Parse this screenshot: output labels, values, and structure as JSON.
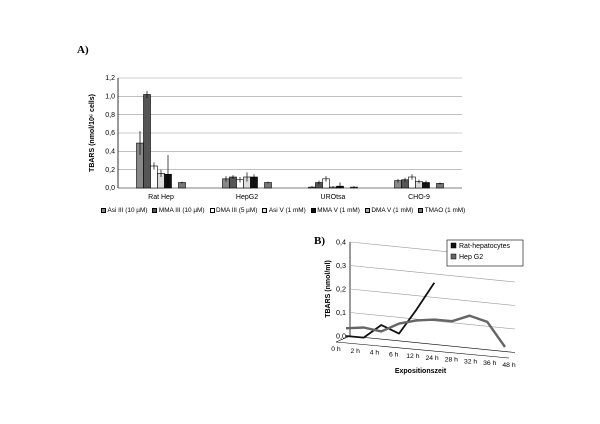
{
  "panel_a_label": "A)",
  "panel_b_label": "B)",
  "chart_data": [
    {
      "type": "bar",
      "ylabel": "TBARS (nmol/10⁶ cells)",
      "ylim": [
        0,
        1.2
      ],
      "yticks": [
        "0,0",
        "0,2",
        "0,4",
        "0,6",
        "0,8",
        "1,0",
        "1,2"
      ],
      "grid": true,
      "legend": "bottom",
      "categories": [
        "Rat Hep",
        "HepG2",
        "UROtsa",
        "CHO-9"
      ],
      "series": [
        {
          "name": "Asi III (10 µM)",
          "color": "#888888",
          "values": [
            0.49,
            0.1,
            0.01,
            0.08
          ],
          "errors": [
            0.13,
            0.03,
            0.01,
            0.02
          ]
        },
        {
          "name": "MMA III (10 µM)",
          "color": "#555555",
          "values": [
            1.02,
            0.12,
            0.06,
            0.09
          ],
          "errors": [
            0.04,
            0.02,
            0.02,
            0.02
          ]
        },
        {
          "name": "DMA III (5 µM)",
          "color": "#ffffff",
          "values": [
            0.24,
            0.09,
            0.1,
            0.12
          ],
          "errors": [
            0.04,
            0.03,
            0.03,
            0.03
          ]
        },
        {
          "name": "Asi V (1 mM)",
          "color": "#dddddd",
          "values": [
            0.16,
            0.12,
            0.01,
            0.07
          ],
          "errors": [
            0.04,
            0.05,
            0.01,
            0.02
          ]
        },
        {
          "name": "MMA V (1 mM)",
          "color": "#111111",
          "values": [
            0.15,
            0.12,
            0.02,
            0.06
          ],
          "errors": [
            0.21,
            0.03,
            0.04,
            0.02
          ]
        },
        {
          "name": "DMA V (1 mM)",
          "color": "#aaaaaa",
          "values": [
            0.0,
            0.0,
            0.0,
            0.0
          ],
          "errors": [
            0,
            0,
            0,
            0
          ]
        },
        {
          "name": "TMAO (1 mM)",
          "color": "#777777",
          "values": [
            0.06,
            0.06,
            0.01,
            0.05
          ],
          "errors": [
            0.01,
            0.01,
            0.01,
            0.01
          ]
        }
      ]
    },
    {
      "type": "line",
      "xlabel": "Expositionszeit",
      "ylabel": "TBARS (nmol/ml)",
      "ylim": [
        0,
        0.4
      ],
      "yticks": [
        "0,0",
        "0,1",
        "0,2",
        "0,3",
        "0,4"
      ],
      "grid": true,
      "legend": "top-right",
      "categories": [
        "0 h",
        "2 h",
        "4 h",
        "6 h",
        "12 h",
        "24 h",
        "28 h",
        "32 h",
        "36 h",
        "48 h"
      ],
      "series": [
        {
          "name": "Rat-hepatocytes",
          "color": "#111111",
          "values": [
            0.0,
            0.0,
            0.06,
            0.03,
            0.14,
            0.26,
            null,
            null,
            null,
            null
          ]
        },
        {
          "name": "Hep G2",
          "color": "#666666",
          "values": [
            0.02,
            0.03,
            0.02,
            0.06,
            0.08,
            0.09,
            0.09,
            0.12,
            0.1,
            0.0
          ]
        }
      ]
    }
  ]
}
